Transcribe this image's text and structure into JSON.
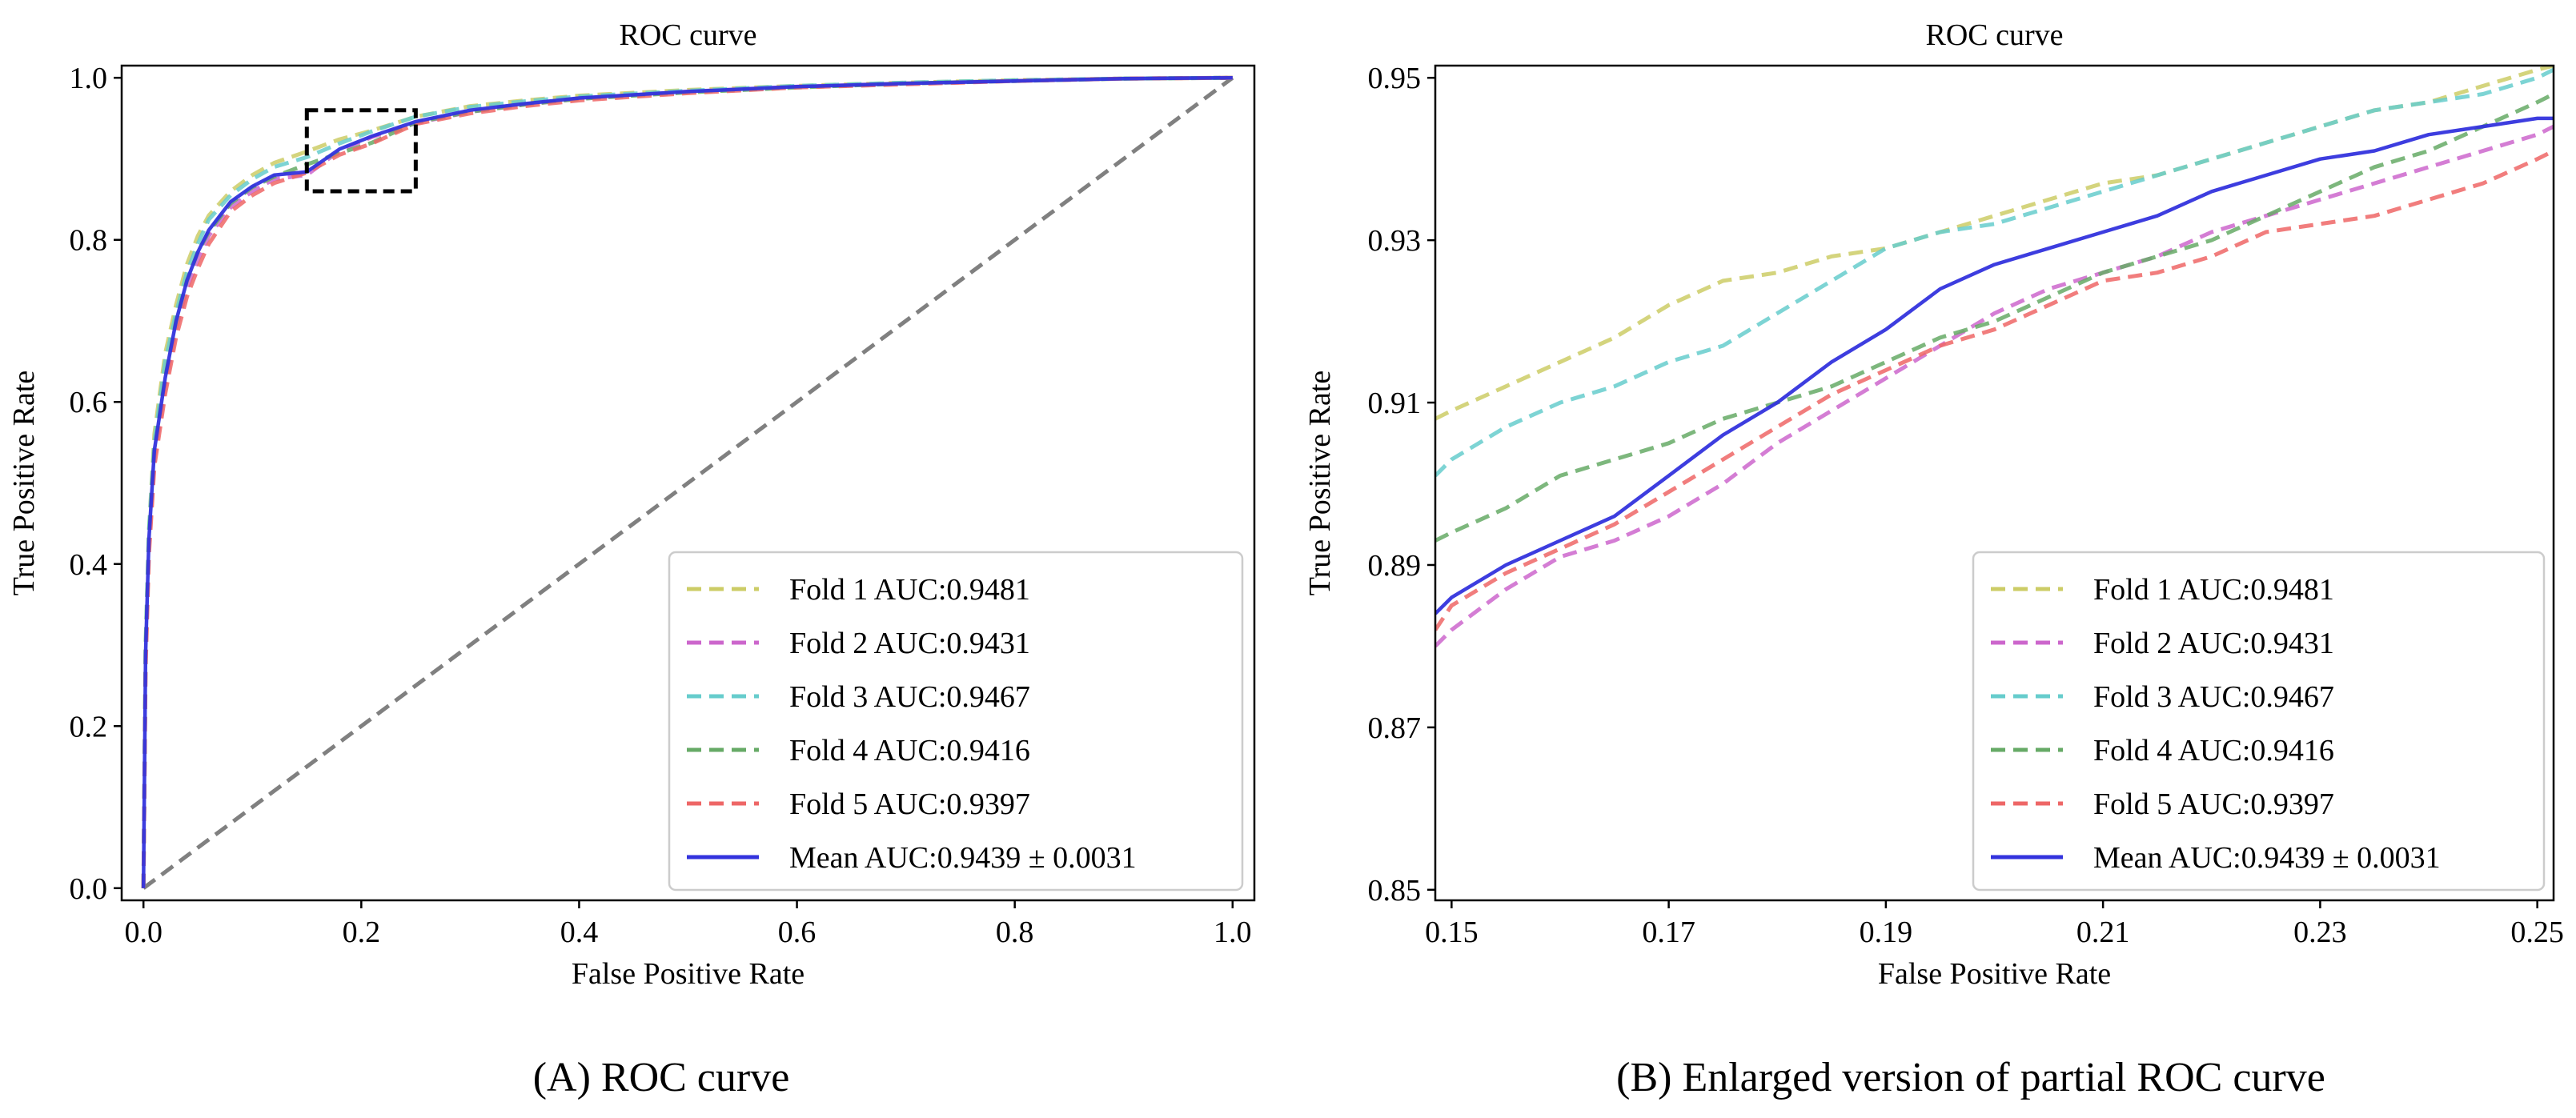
{
  "figure": {
    "captions": [
      "(A) ROC curve",
      "(B) Enlarged version of partial ROC curve"
    ]
  },
  "chart_data": [
    {
      "type": "line",
      "title": "ROC curve",
      "xlabel": "False Positive Rate",
      "ylabel": "True Positive Rate",
      "xlim": [
        -0.02,
        1.02
      ],
      "ylim": [
        -0.015,
        1.015
      ],
      "xticks": [
        0.0,
        0.2,
        0.4,
        0.6,
        0.8,
        1.0
      ],
      "xtick_labels": [
        "0.0",
        "0.2",
        "0.4",
        "0.6",
        "0.8",
        "1.0"
      ],
      "yticks": [
        0.0,
        0.2,
        0.4,
        0.6,
        0.8,
        1.0
      ],
      "ytick_labels": [
        "0.0",
        "0.2",
        "0.4",
        "0.6",
        "0.8",
        "1.0"
      ],
      "grid": false,
      "legend_position": "lower-right",
      "zoom_box": {
        "x": [
          0.15,
          0.25
        ],
        "y": [
          0.86,
          0.96
        ]
      },
      "diagonal": {
        "x": [
          0,
          1
        ],
        "y": [
          0,
          1
        ],
        "color": "#808080",
        "style": "dashed"
      },
      "series": [
        {
          "name": "Fold 1 AUC:0.9481",
          "color": "#cccc66",
          "style": "dashed",
          "x": [
            0,
            0.002,
            0.005,
            0.01,
            0.02,
            0.03,
            0.04,
            0.05,
            0.06,
            0.08,
            0.1,
            0.12,
            0.15,
            0.18,
            0.21,
            0.25,
            0.3,
            0.35,
            0.4,
            0.5,
            0.6,
            0.7,
            0.8,
            0.9,
            1.0
          ],
          "y": [
            0,
            0.3,
            0.44,
            0.56,
            0.66,
            0.72,
            0.77,
            0.805,
            0.83,
            0.86,
            0.88,
            0.895,
            0.909,
            0.924,
            0.935,
            0.952,
            0.965,
            0.972,
            0.978,
            0.985,
            0.99,
            0.994,
            0.997,
            0.999,
            1.0
          ]
        },
        {
          "name": "Fold 2 AUC:0.9431",
          "color": "#cc66cc",
          "style": "dashed",
          "x": [
            0,
            0.002,
            0.005,
            0.01,
            0.02,
            0.03,
            0.04,
            0.05,
            0.06,
            0.08,
            0.1,
            0.12,
            0.15,
            0.18,
            0.21,
            0.25,
            0.3,
            0.35,
            0.4,
            0.5,
            0.6,
            0.7,
            0.8,
            0.9,
            1.0
          ],
          "y": [
            0,
            0.28,
            0.42,
            0.53,
            0.62,
            0.69,
            0.74,
            0.775,
            0.805,
            0.84,
            0.86,
            0.875,
            0.88,
            0.91,
            0.927,
            0.944,
            0.958,
            0.967,
            0.974,
            0.983,
            0.989,
            0.993,
            0.996,
            0.999,
            1.0
          ]
        },
        {
          "name": "Fold 3 AUC:0.9467",
          "color": "#66cccc",
          "style": "dashed",
          "x": [
            0,
            0.002,
            0.005,
            0.01,
            0.02,
            0.03,
            0.04,
            0.05,
            0.06,
            0.08,
            0.1,
            0.12,
            0.15,
            0.18,
            0.21,
            0.25,
            0.3,
            0.35,
            0.4,
            0.5,
            0.6,
            0.7,
            0.8,
            0.9,
            1.0
          ],
          "y": [
            0,
            0.3,
            0.44,
            0.55,
            0.65,
            0.71,
            0.76,
            0.795,
            0.825,
            0.855,
            0.875,
            0.89,
            0.902,
            0.919,
            0.934,
            0.952,
            0.964,
            0.971,
            0.977,
            0.984,
            0.99,
            0.994,
            0.997,
            0.999,
            1.0
          ]
        },
        {
          "name": "Fold 4 AUC:0.9416",
          "color": "#66aa66",
          "style": "dashed",
          "x": [
            0,
            0.002,
            0.005,
            0.01,
            0.02,
            0.03,
            0.04,
            0.05,
            0.06,
            0.08,
            0.1,
            0.12,
            0.15,
            0.18,
            0.21,
            0.25,
            0.3,
            0.35,
            0.4,
            0.5,
            0.6,
            0.7,
            0.8,
            0.9,
            1.0
          ],
          "y": [
            0,
            0.29,
            0.43,
            0.54,
            0.63,
            0.7,
            0.75,
            0.785,
            0.81,
            0.845,
            0.865,
            0.878,
            0.893,
            0.907,
            0.92,
            0.945,
            0.958,
            0.967,
            0.974,
            0.982,
            0.988,
            0.993,
            0.996,
            0.999,
            1.0
          ]
        },
        {
          "name": "Fold 5 AUC:0.9397",
          "color": "#ee6666",
          "style": "dashed",
          "x": [
            0,
            0.002,
            0.005,
            0.01,
            0.02,
            0.03,
            0.04,
            0.05,
            0.06,
            0.08,
            0.1,
            0.12,
            0.15,
            0.18,
            0.21,
            0.25,
            0.3,
            0.35,
            0.4,
            0.5,
            0.6,
            0.7,
            0.8,
            0.9,
            1.0
          ],
          "y": [
            0,
            0.27,
            0.41,
            0.52,
            0.61,
            0.68,
            0.73,
            0.765,
            0.795,
            0.835,
            0.855,
            0.87,
            0.883,
            0.905,
            0.919,
            0.943,
            0.956,
            0.965,
            0.972,
            0.981,
            0.988,
            0.992,
            0.996,
            0.999,
            1.0
          ]
        },
        {
          "name": "Mean AUC:0.9439 ± 0.0031",
          "color": "#3333dd",
          "style": "solid",
          "x": [
            0,
            0.002,
            0.005,
            0.01,
            0.02,
            0.03,
            0.04,
            0.05,
            0.06,
            0.08,
            0.1,
            0.12,
            0.15,
            0.18,
            0.21,
            0.25,
            0.3,
            0.35,
            0.4,
            0.5,
            0.6,
            0.7,
            0.8,
            0.9,
            1.0
          ],
          "y": [
            0,
            0.29,
            0.43,
            0.54,
            0.63,
            0.7,
            0.75,
            0.785,
            0.812,
            0.847,
            0.866,
            0.88,
            0.884,
            0.912,
            0.928,
            0.946,
            0.96,
            0.968,
            0.975,
            0.983,
            0.989,
            0.993,
            0.996,
            0.999,
            1.0
          ]
        }
      ]
    },
    {
      "type": "line",
      "title": "ROC curve",
      "xlabel": "False Positive Rate",
      "ylabel": "True Positive Rate",
      "xlim": [
        0.1485,
        0.2515
      ],
      "ylim": [
        0.8487,
        0.9515
      ],
      "xticks": [
        0.15,
        0.17,
        0.19,
        0.21,
        0.23,
        0.25
      ],
      "xtick_labels": [
        "0.15",
        "0.17",
        "0.19",
        "0.21",
        "0.23",
        "0.25"
      ],
      "yticks": [
        0.85,
        0.87,
        0.89,
        0.91,
        0.93,
        0.95
      ],
      "ytick_labels": [
        "0.85",
        "0.87",
        "0.89",
        "0.91",
        "0.93",
        "0.95"
      ],
      "grid": false,
      "legend_position": "lower-right",
      "series": [
        {
          "name": "Fold 1 AUC:0.9481",
          "color": "#cccc66",
          "style": "dashed",
          "x": [
            0.1485,
            0.15,
            0.155,
            0.16,
            0.165,
            0.17,
            0.175,
            0.18,
            0.185,
            0.19,
            0.195,
            0.2,
            0.205,
            0.21,
            0.215,
            0.22,
            0.225,
            0.23,
            0.235,
            0.24,
            0.245,
            0.25,
            0.2515
          ],
          "y": [
            0.908,
            0.909,
            0.912,
            0.915,
            0.918,
            0.922,
            0.925,
            0.926,
            0.928,
            0.929,
            0.931,
            0.933,
            0.935,
            0.937,
            0.938,
            0.94,
            0.942,
            0.944,
            0.946,
            0.947,
            0.949,
            0.951,
            0.9515
          ]
        },
        {
          "name": "Fold 2 AUC:0.9431",
          "color": "#cc66cc",
          "style": "dashed",
          "x": [
            0.1485,
            0.15,
            0.155,
            0.16,
            0.165,
            0.17,
            0.175,
            0.18,
            0.185,
            0.19,
            0.195,
            0.2,
            0.205,
            0.21,
            0.215,
            0.22,
            0.225,
            0.23,
            0.235,
            0.24,
            0.245,
            0.25,
            0.2515
          ],
          "y": [
            0.88,
            0.882,
            0.887,
            0.891,
            0.893,
            0.896,
            0.9,
            0.905,
            0.909,
            0.913,
            0.917,
            0.921,
            0.924,
            0.926,
            0.928,
            0.931,
            0.933,
            0.935,
            0.937,
            0.939,
            0.941,
            0.943,
            0.944
          ]
        },
        {
          "name": "Fold 3 AUC:0.9467",
          "color": "#66cccc",
          "style": "dashed",
          "x": [
            0.1485,
            0.15,
            0.155,
            0.16,
            0.165,
            0.17,
            0.175,
            0.18,
            0.185,
            0.19,
            0.195,
            0.2,
            0.205,
            0.21,
            0.215,
            0.22,
            0.225,
            0.23,
            0.235,
            0.24,
            0.245,
            0.25,
            0.2515
          ],
          "y": [
            0.901,
            0.903,
            0.907,
            0.91,
            0.912,
            0.915,
            0.917,
            0.921,
            0.925,
            0.929,
            0.931,
            0.932,
            0.934,
            0.936,
            0.938,
            0.94,
            0.942,
            0.944,
            0.946,
            0.947,
            0.948,
            0.95,
            0.951
          ]
        },
        {
          "name": "Fold 4 AUC:0.9416",
          "color": "#66aa66",
          "style": "dashed",
          "x": [
            0.1485,
            0.15,
            0.155,
            0.16,
            0.165,
            0.17,
            0.175,
            0.18,
            0.185,
            0.19,
            0.195,
            0.2,
            0.205,
            0.21,
            0.215,
            0.22,
            0.225,
            0.23,
            0.235,
            0.24,
            0.245,
            0.25,
            0.2515
          ],
          "y": [
            0.893,
            0.894,
            0.897,
            0.901,
            0.903,
            0.905,
            0.908,
            0.91,
            0.912,
            0.915,
            0.918,
            0.92,
            0.923,
            0.926,
            0.928,
            0.93,
            0.933,
            0.936,
            0.939,
            0.941,
            0.944,
            0.947,
            0.948
          ]
        },
        {
          "name": "Fold 5 AUC:0.9397",
          "color": "#ee6666",
          "style": "dashed",
          "x": [
            0.1485,
            0.15,
            0.155,
            0.16,
            0.165,
            0.17,
            0.175,
            0.18,
            0.185,
            0.19,
            0.195,
            0.2,
            0.205,
            0.21,
            0.215,
            0.22,
            0.225,
            0.23,
            0.235,
            0.24,
            0.245,
            0.25,
            0.2515
          ],
          "y": [
            0.882,
            0.885,
            0.889,
            0.892,
            0.895,
            0.899,
            0.903,
            0.907,
            0.911,
            0.914,
            0.917,
            0.919,
            0.922,
            0.925,
            0.926,
            0.928,
            0.931,
            0.932,
            0.933,
            0.935,
            0.937,
            0.94,
            0.941
          ]
        },
        {
          "name": "Mean AUC:0.9439 ± 0.0031",
          "color": "#3333dd",
          "style": "solid",
          "x": [
            0.1485,
            0.15,
            0.155,
            0.16,
            0.165,
            0.17,
            0.175,
            0.18,
            0.185,
            0.19,
            0.195,
            0.2,
            0.205,
            0.21,
            0.215,
            0.22,
            0.225,
            0.23,
            0.235,
            0.24,
            0.245,
            0.25,
            0.2515
          ],
          "y": [
            0.884,
            0.886,
            0.89,
            0.893,
            0.896,
            0.901,
            0.906,
            0.91,
            0.915,
            0.919,
            0.924,
            0.927,
            0.929,
            0.931,
            0.933,
            0.936,
            0.938,
            0.94,
            0.941,
            0.943,
            0.944,
            0.945,
            0.945
          ]
        }
      ]
    }
  ]
}
